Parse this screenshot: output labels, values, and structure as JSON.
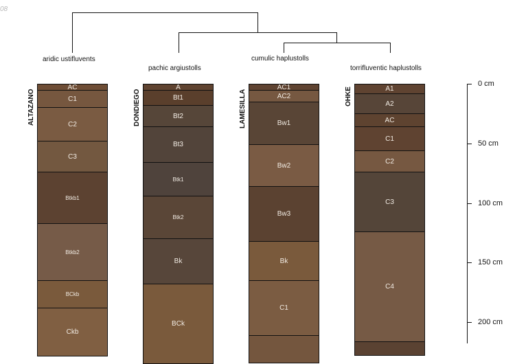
{
  "corner_label": "08",
  "depth_labels": [
    "0 cm",
    "50 cm",
    "100 cm",
    "150 cm",
    "200 cm"
  ],
  "profiles": [
    {
      "name": "ALTAZANO",
      "taxon": "aridic ustifluvents",
      "horizons": [
        {
          "name": "AC",
          "color": "#6e4d35"
        },
        {
          "name": "C1",
          "color": "#76573f"
        },
        {
          "name": "C2",
          "color": "#7a5b42"
        },
        {
          "name": "C3",
          "color": "#735840"
        },
        {
          "name": "Btkb1",
          "color": "#5c4231"
        },
        {
          "name": "Btkb2",
          "color": "#765b48"
        },
        {
          "name": "BCkb",
          "color": "#7a5a3c"
        },
        {
          "name": "Ckb",
          "color": "#805f42"
        }
      ]
    },
    {
      "name": "DONDIEGO",
      "taxon": "pachic argiustolls",
      "horizons": [
        {
          "name": "A",
          "color": "#5f4330"
        },
        {
          "name": "Bt1",
          "color": "#5a3f2c"
        },
        {
          "name": "Bt2",
          "color": "#564639"
        },
        {
          "name": "Bt3",
          "color": "#52443a"
        },
        {
          "name": "Btk1",
          "color": "#4f433c"
        },
        {
          "name": "Btk2",
          "color": "#5a4637"
        },
        {
          "name": "Bk",
          "color": "#57463a"
        },
        {
          "name": "BCk",
          "color": "#7a5a3c"
        }
      ]
    },
    {
      "name": "LAMESILLA",
      "taxon": "cumulic haplustolls",
      "horizons": [
        {
          "name": "AC1",
          "color": "#5f4331"
        },
        {
          "name": "AC2",
          "color": "#765841"
        },
        {
          "name": "Bw1",
          "color": "#594536"
        },
        {
          "name": "Bw2",
          "color": "#7a5b44"
        },
        {
          "name": "Bw3",
          "color": "#5b4231"
        },
        {
          "name": "Bk",
          "color": "#7a5a3c"
        },
        {
          "name": "C1",
          "color": "#7b5c42"
        },
        {
          "name": "",
          "color": "#74563e"
        }
      ]
    },
    {
      "name": "OHKE",
      "taxon": "torrifluventic haplustolls",
      "horizons": [
        {
          "name": "A1",
          "color": "#5f4331"
        },
        {
          "name": "A2",
          "color": "#574538"
        },
        {
          "name": "AC",
          "color": "#5e4330"
        },
        {
          "name": "C1",
          "color": "#5f4331"
        },
        {
          "name": "C2",
          "color": "#765841"
        },
        {
          "name": "C3",
          "color": "#544539"
        },
        {
          "name": "C4",
          "color": "#765a45"
        },
        {
          "name": "",
          "color": "#5a4232"
        }
      ]
    }
  ]
}
